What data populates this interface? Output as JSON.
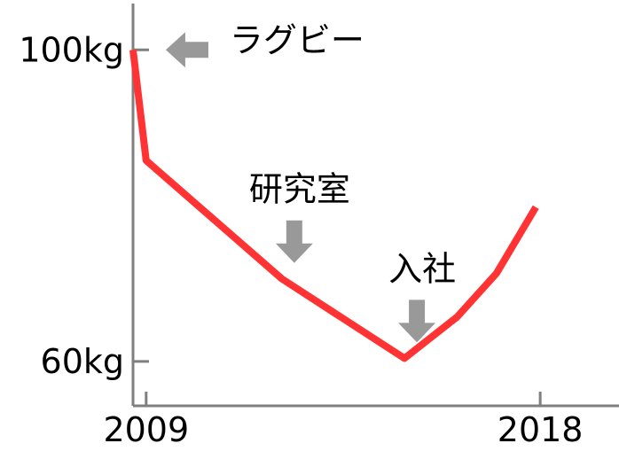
{
  "chart_data": {
    "type": "line",
    "title": "",
    "xlabel": "",
    "ylabel": "",
    "x_ticks": [
      {
        "value": 2009.0,
        "label": "2009"
      },
      {
        "value": 2018.0,
        "label": "2018"
      }
    ],
    "y_ticks": [
      {
        "value": 100,
        "label": "100kg"
      },
      {
        "value": 60,
        "label": "60kg"
      }
    ],
    "xlim": [
      2008.7,
      2019.8
    ],
    "ylim": [
      54.3,
      106.4
    ],
    "series": [
      {
        "color": "#ff3333",
        "points": [
          {
            "x": 2008.7,
            "y": 100.0
          },
          {
            "x": 2009.0,
            "y": 85.8
          },
          {
            "x": 2012.1,
            "y": 70.6
          },
          {
            "x": 2014.9,
            "y": 60.4
          },
          {
            "x": 2016.1,
            "y": 65.7
          },
          {
            "x": 2017.0,
            "y": 71.3
          },
          {
            "x": 2017.9,
            "y": 79.8
          }
        ]
      }
    ],
    "annotations": [
      {
        "text": "ラグビー",
        "arrow": "left",
        "x": 2008.8,
        "y": 100.0
      },
      {
        "text": "研究室",
        "arrow": "down",
        "x": 2012.1,
        "y": 70.6
      },
      {
        "text": "入社",
        "arrow": "down",
        "x": 2014.9,
        "y": 60.4
      }
    ],
    "grid": false,
    "legend": "none",
    "colors": {
      "axis": "#7f7f7f",
      "arrow": "#999999"
    }
  }
}
